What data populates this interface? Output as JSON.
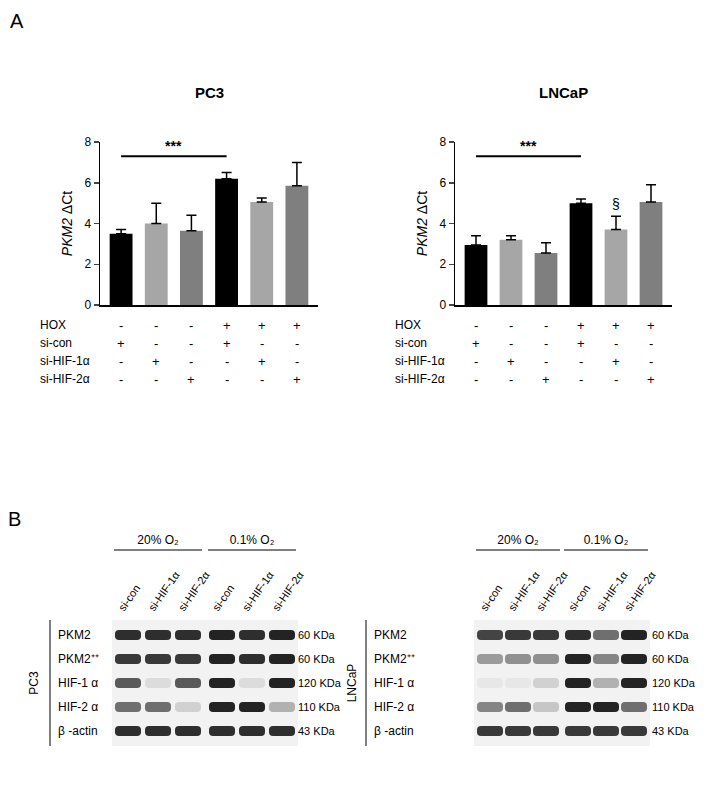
{
  "panel_labels": [
    "A",
    "B"
  ],
  "chart_data": [
    {
      "type": "bar",
      "title": "PC3",
      "y_label": "PKM2 ΔCt",
      "categories": [
        null,
        null,
        null,
        null,
        null,
        null
      ],
      "values": [
        3.5,
        4.0,
        3.65,
        6.2,
        5.05,
        5.85
      ],
      "errors": [
        0.2,
        1.0,
        0.75,
        0.3,
        0.2,
        1.15
      ],
      "colors": [
        "#000000",
        "#a6a6a6",
        "#7f7f7f",
        "#000000",
        "#a6a6a6",
        "#7f7f7f"
      ],
      "ylim": [
        0,
        8
      ],
      "yticks": [
        0,
        2,
        4,
        6,
        8
      ],
      "conditions": [
        {
          "label": "HOX",
          "values": [
            "-",
            "-",
            "-",
            "+",
            "+",
            "+"
          ]
        },
        {
          "label": "si-con",
          "values": [
            "+",
            "-",
            "-",
            "+",
            "-",
            "-"
          ]
        },
        {
          "label": "si-HIF-1α",
          "values": [
            "-",
            "+",
            "-",
            "-",
            "+",
            "-"
          ]
        },
        {
          "label": "si-HIF-2α",
          "values": [
            "-",
            "-",
            "+",
            "-",
            "-",
            "+"
          ]
        }
      ],
      "significance": [
        {
          "from": 0,
          "to": 3,
          "y": 7.3,
          "label": "***"
        }
      ],
      "annotations": []
    },
    {
      "type": "bar",
      "title": "LNCaP",
      "y_label": "PKM2 ΔCt",
      "categories": [
        null,
        null,
        null,
        null,
        null,
        null
      ],
      "values": [
        2.95,
        3.2,
        2.55,
        5.0,
        3.7,
        5.05
      ],
      "errors": [
        0.45,
        0.2,
        0.5,
        0.2,
        0.65,
        0.85
      ],
      "colors": [
        "#000000",
        "#a6a6a6",
        "#7f7f7f",
        "#000000",
        "#a6a6a6",
        "#7f7f7f"
      ],
      "ylim": [
        0,
        8
      ],
      "yticks": [
        0,
        2,
        4,
        6,
        8
      ],
      "conditions": [
        {
          "label": "HOX",
          "values": [
            "-",
            "-",
            "-",
            "+",
            "+",
            "+"
          ]
        },
        {
          "label": "si-con",
          "values": [
            "+",
            "-",
            "-",
            "+",
            "-",
            "-"
          ]
        },
        {
          "label": "si-HIF-1α",
          "values": [
            "-",
            "+",
            "-",
            "-",
            "+",
            "-"
          ]
        },
        {
          "label": "si-HIF-2α",
          "values": [
            "-",
            "-",
            "+",
            "-",
            "-",
            "+"
          ]
        }
      ],
      "significance": [
        {
          "from": 0,
          "to": 3,
          "y": 7.3,
          "label": "***"
        }
      ],
      "annotations": [
        {
          "index": 4,
          "y": 4.45,
          "text": "§"
        }
      ]
    }
  ],
  "blots": [
    {
      "cell_line": "PC3",
      "lanes": [
        "si-con",
        "si-HIF-1α",
        "si-HIF-2α",
        "si-con",
        "si-HIF-1α",
        "si-HIF-2α"
      ],
      "groups": [
        {
          "label": "20% O₂",
          "from": 0,
          "to": 2
        },
        {
          "label": "0.1% O₂",
          "from": 3,
          "to": 5
        }
      ],
      "rows": [
        {
          "label": "PKM2",
          "size": "60 KDa",
          "bands": [
            0.9,
            0.9,
            0.9,
            0.95,
            0.9,
            0.95
          ]
        },
        {
          "label": "PKM2⁺⁺",
          "size": "60 KDa",
          "bands": [
            0.85,
            0.85,
            0.85,
            0.95,
            0.9,
            0.95
          ]
        },
        {
          "label": "HIF-1 α",
          "size": "120 KDa",
          "bands": [
            0.7,
            0.1,
            0.7,
            0.95,
            0.1,
            0.95
          ]
        },
        {
          "label": "HIF-2 α",
          "size": "110 KDa",
          "bands": [
            0.6,
            0.6,
            0.15,
            0.95,
            0.95,
            0.3
          ]
        },
        {
          "label": "β -actin",
          "size": "43 KDa",
          "bands": [
            0.9,
            0.9,
            0.9,
            0.9,
            0.9,
            0.9
          ]
        }
      ]
    },
    {
      "cell_line": "LNCaP",
      "lanes": [
        "si-con",
        "si-HIF-1α",
        "si-HIF-2α",
        "si-con",
        "si-HIF-1α",
        "si-HIF-2α"
      ],
      "groups": [
        {
          "label": "20% O₂",
          "from": 0,
          "to": 2
        },
        {
          "label": "0.1% O₂",
          "from": 3,
          "to": 5
        }
      ],
      "rows": [
        {
          "label": "PKM2",
          "size": "60 KDa",
          "bands": [
            0.8,
            0.85,
            0.85,
            0.9,
            0.6,
            0.95
          ]
        },
        {
          "label": "PKM2⁺⁺",
          "size": "60 KDa",
          "bands": [
            0.4,
            0.45,
            0.45,
            0.95,
            0.5,
            0.95
          ]
        },
        {
          "label": "HIF-1 α",
          "size": "120 KDa",
          "bands": [
            0.05,
            0.05,
            0.15,
            0.95,
            0.3,
            0.95
          ]
        },
        {
          "label": "HIF-2 α",
          "size": "110 KDa",
          "bands": [
            0.5,
            0.6,
            0.2,
            0.95,
            0.95,
            0.6
          ]
        },
        {
          "label": "β -actin",
          "size": "43 KDa",
          "bands": [
            0.85,
            0.85,
            0.85,
            0.85,
            0.85,
            0.85
          ]
        }
      ]
    }
  ]
}
